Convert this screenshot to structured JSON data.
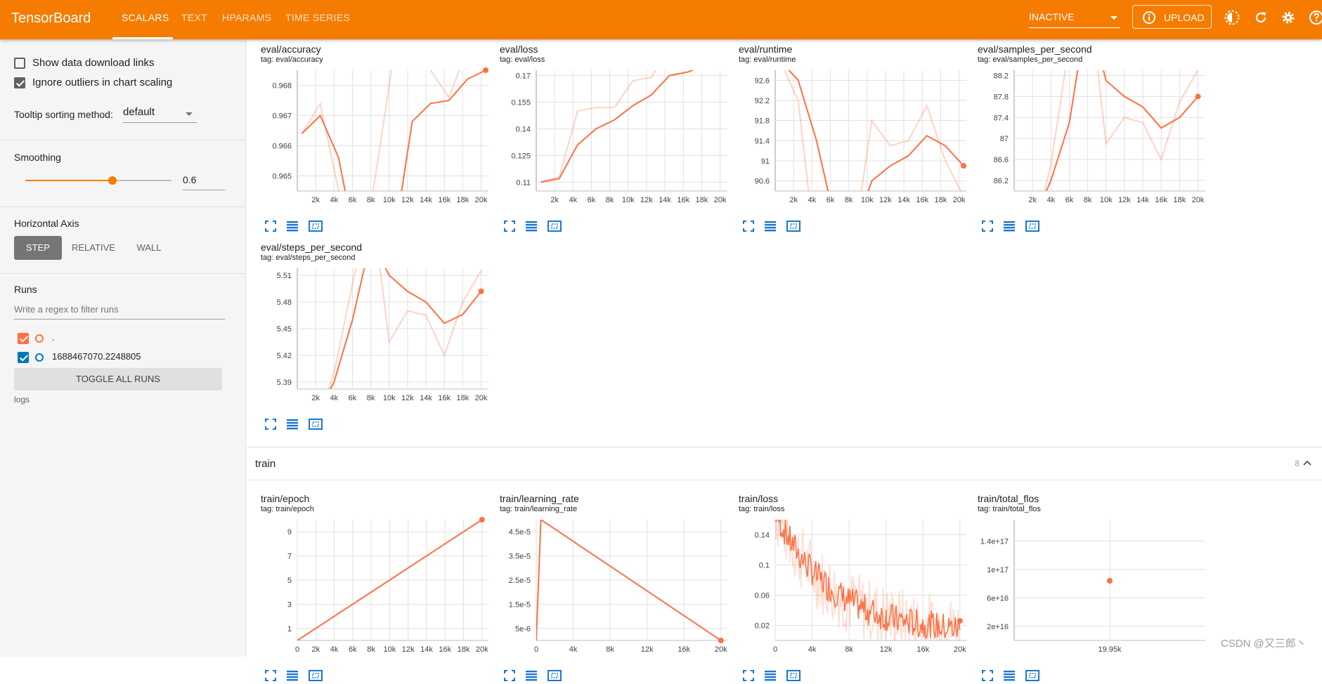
{
  "app": {
    "title": "TensorBoard"
  },
  "nav": {
    "tabs": [
      "SCALARS",
      "TEXT",
      "HPARAMS",
      "TIME SERIES"
    ]
  },
  "toolbar": {
    "status": "INACTIVE",
    "upload": "UPLOAD"
  },
  "sidebar": {
    "show_download": "Show data download links",
    "ignore_outliers": "Ignore outliers in chart scaling",
    "tooltip_label": "Tooltip sorting method:",
    "tooltip_value": "default",
    "smoothing_label": "Smoothing",
    "smoothing_value": "0.6",
    "smoothing_level": 0.6,
    "haxis_label": "Horizontal Axis",
    "haxis_options": [
      "STEP",
      "RELATIVE",
      "WALL"
    ],
    "runs_label": "Runs",
    "runs_filter_placeholder": "Write a regex to filter runs",
    "runs": [
      {
        "name": ".",
        "color": "#ff7043",
        "checked": true
      },
      {
        "name": "1688467070.2248805",
        "color": "#0077bb",
        "checked": true
      }
    ],
    "toggle_all": "TOGGLE ALL RUNS",
    "logdir": "logs"
  },
  "eval_charts": [
    {
      "title": "eval/accuracy",
      "tag": "tag: eval/accuracy"
    },
    {
      "title": "eval/loss",
      "tag": "tag: eval/loss"
    },
    {
      "title": "eval/runtime",
      "tag": "tag: eval/runtime"
    },
    {
      "title": "eval/samples_per_second",
      "tag": "tag: eval/samples_per_second"
    },
    {
      "title": "eval/steps_per_second",
      "tag": "tag: eval/steps_per_second"
    }
  ],
  "train_section": {
    "title": "train",
    "count": "8"
  },
  "train_charts": [
    {
      "title": "train/epoch",
      "tag": "tag: train/epoch"
    },
    {
      "title": "train/learning_rate",
      "tag": "tag: train/learning_rate"
    },
    {
      "title": "train/loss",
      "tag": "tag: train/loss"
    },
    {
      "title": "train/total_flos",
      "tag": "tag: train/total_flos"
    }
  ],
  "chart_data": [
    {
      "type": "line",
      "title": "eval/accuracy",
      "ylim": [
        0.9645,
        0.9685
      ],
      "yticks": [
        "0.965",
        "0.966",
        "0.967",
        "0.968"
      ],
      "xticks": [
        "2k",
        "4k",
        "6k",
        "8k",
        "10k",
        "12k",
        "14k",
        "16k",
        "18k",
        "20k"
      ],
      "series": [
        {
          "smoothed": [
            0.9664,
            0.967,
            0.9656,
            0.9625,
            0.961,
            0.9628,
            0.9668,
            0.9674,
            0.9675,
            0.9682,
            0.9685
          ],
          "raw": [
            0.9664,
            0.9674,
            0.9645,
            0.961,
            0.965,
            0.969,
            0.972,
            0.9685,
            0.9676,
            0.9692,
            0.9695
          ]
        }
      ]
    },
    {
      "type": "line",
      "title": "eval/loss",
      "ylim": [
        0.105,
        0.173
      ],
      "yticks": [
        "0.11",
        "0.125",
        "0.14",
        "0.155",
        "0.17"
      ],
      "xticks": [
        "2k",
        "4k",
        "6k",
        "8k",
        "10k",
        "12k",
        "14k",
        "16k",
        "18k",
        "20k"
      ],
      "series": [
        {
          "smoothed": [
            0.11,
            0.112,
            0.131,
            0.14,
            0.145,
            0.153,
            0.159,
            0.17,
            0.172,
            0.176,
            0.18
          ],
          "raw": [
            0.11,
            0.113,
            0.15,
            0.152,
            0.152,
            0.167,
            0.169,
            0.185,
            0.174,
            0.182,
            0.186
          ]
        }
      ]
    },
    {
      "type": "line",
      "title": "eval/runtime",
      "ylim": [
        90.4,
        92.8
      ],
      "yticks": [
        "90.6",
        "91",
        "91.4",
        "91.8",
        "92.2",
        "92.6"
      ],
      "xticks": [
        "2k",
        "4k",
        "6k",
        "8k",
        "10k",
        "12k",
        "14k",
        "16k",
        "18k",
        "20k"
      ],
      "series": [
        {
          "smoothed": [
            93.0,
            92.6,
            91.4,
            89.8,
            89.5,
            90.6,
            90.9,
            91.1,
            91.5,
            91.3,
            90.9
          ],
          "raw": [
            93.0,
            92.2,
            89.0,
            89.2,
            89.3,
            91.8,
            91.3,
            91.4,
            92.1,
            91.0,
            90.3
          ]
        }
      ]
    },
    {
      "type": "line",
      "title": "eval/samples_per_second",
      "ylim": [
        86.0,
        88.3
      ],
      "yticks": [
        "86.2",
        "86.6",
        "87",
        "87.4",
        "87.8",
        "88.2"
      ],
      "xticks": [
        "2k",
        "4k",
        "6k",
        "8k",
        "10k",
        "12k",
        "14k",
        "16k",
        "18k",
        "20k"
      ],
      "series": [
        {
          "smoothed": [
            85.8,
            86.2,
            87.3,
            89.5,
            88.1,
            87.8,
            87.6,
            87.2,
            87.4,
            87.8
          ],
          "raw": [
            85.8,
            86.5,
            88.8,
            90.0,
            86.9,
            87.4,
            87.3,
            86.6,
            87.7,
            88.3
          ],
          "x": [
            3,
            4,
            6,
            8,
            10,
            12,
            14,
            16,
            18,
            20
          ]
        }
      ]
    },
    {
      "type": "line",
      "title": "eval/steps_per_second",
      "ylim": [
        5.382,
        5.518
      ],
      "yticks": [
        "5.39",
        "5.42",
        "5.45",
        "5.48",
        "5.51"
      ],
      "xticks": [
        "2k",
        "4k",
        "6k",
        "8k",
        "10k",
        "12k",
        "14k",
        "16k",
        "18k",
        "20k"
      ],
      "series": [
        {
          "smoothed": [
            5.37,
            5.39,
            5.46,
            5.55,
            5.51,
            5.492,
            5.48,
            5.456,
            5.466,
            5.492
          ],
          "raw": [
            5.37,
            5.4,
            5.5,
            5.6,
            5.435,
            5.47,
            5.465,
            5.42,
            5.48,
            5.515
          ],
          "x": [
            3,
            4,
            6,
            8,
            10,
            12,
            14,
            16,
            18,
            20
          ]
        }
      ]
    },
    {
      "type": "line",
      "title": "train/epoch",
      "ylim": [
        0,
        10
      ],
      "yticks": [
        "1",
        "3",
        "5",
        "7",
        "9"
      ],
      "xticks": [
        "0",
        "2k",
        "4k",
        "6k",
        "8k",
        "10k",
        "12k",
        "14k",
        "16k",
        "18k",
        "20k"
      ],
      "series": [
        {
          "x": [
            0,
            20
          ],
          "y": [
            0,
            10
          ]
        }
      ]
    },
    {
      "type": "line",
      "title": "train/learning_rate",
      "ylim": [
        0,
        5e-05
      ],
      "yticks": [
        "5e-6",
        "1.5e-5",
        "2.5e-5",
        "3.5e-5",
        "4.5e-5"
      ],
      "xticks": [
        "0",
        "4k",
        "8k",
        "12k",
        "16k",
        "20k"
      ],
      "series": [
        {
          "x": [
            0,
            0.5,
            20
          ],
          "y": [
            0,
            5e-05,
            0
          ]
        }
      ]
    },
    {
      "type": "line",
      "title": "train/loss",
      "ylim": [
        0,
        0.16
      ],
      "yticks": [
        "0.02",
        "0.06",
        "0.1",
        "0.14"
      ],
      "xticks": [
        "0",
        "4k",
        "8k",
        "12k",
        "16k",
        "20k"
      ],
      "series": [
        {
          "x": [
            0,
            20
          ],
          "y": [
            0.16,
            0.02
          ]
        }
      ]
    },
    {
      "type": "scatter",
      "title": "train/total_flos",
      "yticks": [
        "2e+16",
        "6e+16",
        "1e+17",
        "1.4e+17"
      ],
      "xticks": [
        "19.95k"
      ],
      "series": [
        {
          "x": [
            19.95
          ],
          "y": [
            8.4e+16
          ]
        }
      ]
    }
  ],
  "watermark": "CSDN @又三郎丶"
}
